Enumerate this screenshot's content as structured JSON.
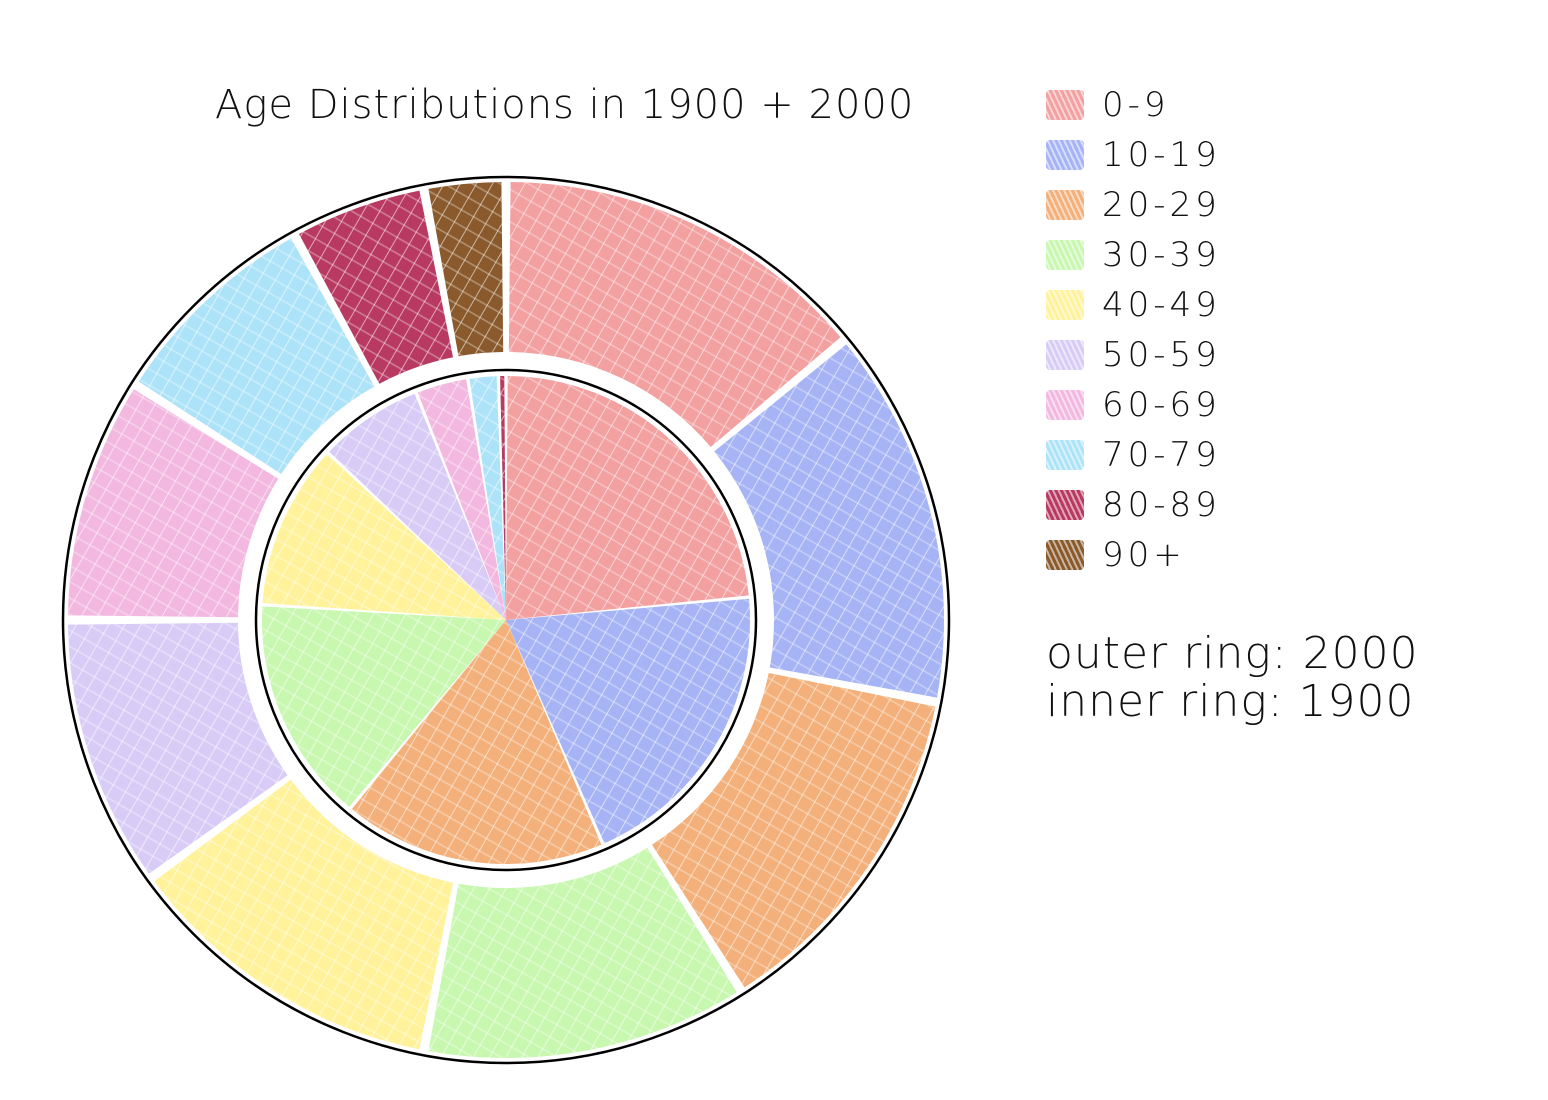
{
  "chart_data": {
    "type": "pie",
    "title": "Age Distributions in 1900 + 2000",
    "categories": [
      "0-9",
      "10-19",
      "20-29",
      "30-39",
      "40-49",
      "50-59",
      "60-69",
      "70-79",
      "80-89",
      "90+"
    ],
    "colors": [
      "#f2a0a0",
      "#a6b4f5",
      "#f3b07a",
      "#c8f7b0",
      "#fff29a",
      "#d8ccf7",
      "#f2b8e0",
      "#ade3f9",
      "#b83a62",
      "#8a5a2c"
    ],
    "series": [
      {
        "name": "1900",
        "ring": "inner",
        "values": [
          23.5,
          20,
          17.5,
          15,
          11,
          7,
          3.5,
          2,
          0.5,
          0
        ]
      },
      {
        "name": "2000",
        "ring": "outer",
        "values": [
          14,
          14,
          13,
          12,
          12,
          10,
          9,
          8,
          5,
          3
        ]
      }
    ],
    "notes": {
      "outer": "outer ring: 2000",
      "inner": "inner ring: 1900"
    }
  }
}
